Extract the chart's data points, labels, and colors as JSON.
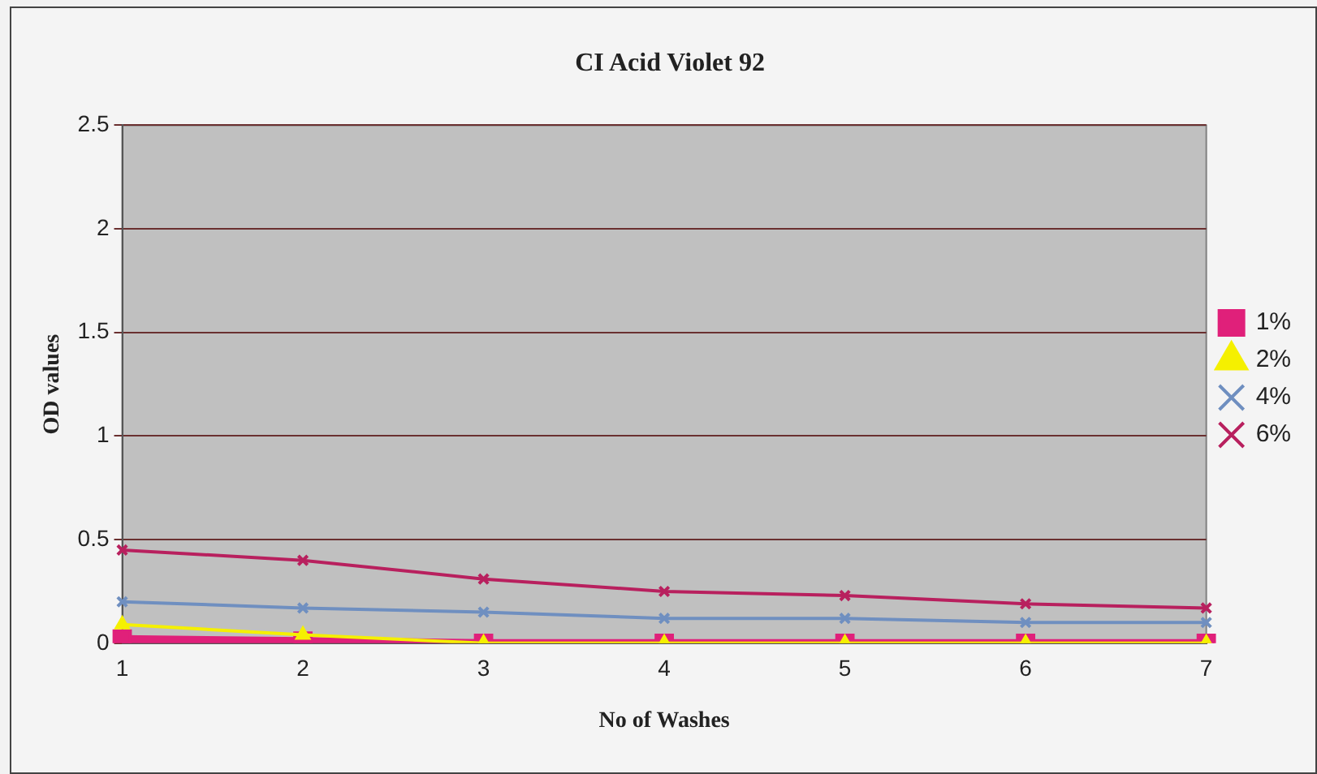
{
  "chart_data": {
    "type": "line",
    "title": "CI Acid Violet 92",
    "xlabel": "No of Washes",
    "ylabel": "OD values",
    "categories": [
      "1",
      "2",
      "3",
      "4",
      "5",
      "6",
      "7"
    ],
    "series": [
      {
        "name": "1%",
        "color": "#e0207a",
        "marker": "square",
        "values": [
          0.02,
          0.01,
          0,
          0,
          0,
          0,
          0
        ]
      },
      {
        "name": "2%",
        "color": "#f5f000",
        "marker": "triangle",
        "values": [
          0.09,
          0.04,
          0,
          0,
          0,
          0,
          0
        ]
      },
      {
        "name": "4%",
        "color": "#6f8fc0",
        "marker": "cross",
        "values": [
          0.2,
          0.17,
          0.15,
          0.12,
          0.12,
          0.1,
          0.1
        ]
      },
      {
        "name": "6%",
        "color": "#b8205e",
        "marker": "cross",
        "values": [
          0.45,
          0.4,
          0.31,
          0.25,
          0.23,
          0.19,
          0.17
        ]
      }
    ],
    "ylim": [
      0,
      2.5
    ],
    "yticks": [
      0,
      0.5,
      1,
      1.5,
      2,
      2.5
    ],
    "grid": "y",
    "legend": "right"
  }
}
